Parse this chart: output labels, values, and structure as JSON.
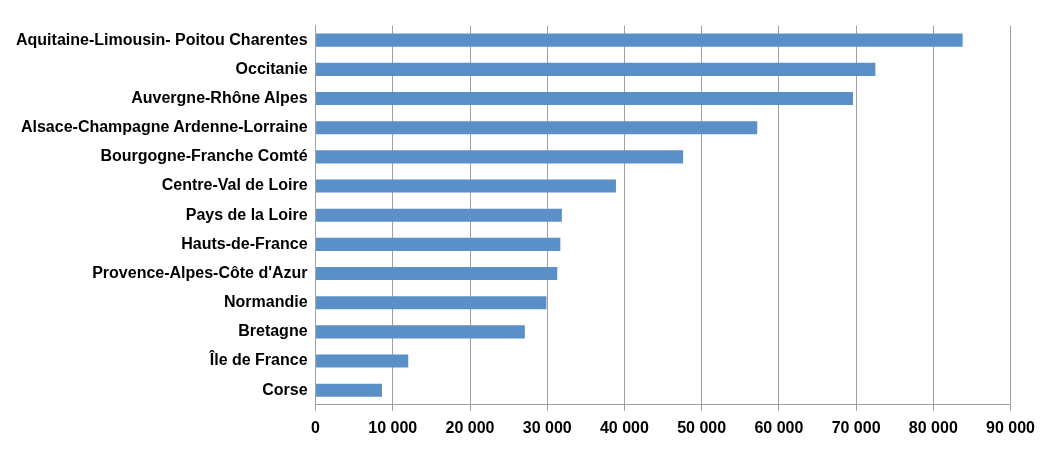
{
  "chart_data": {
    "type": "bar",
    "orientation": "horizontal",
    "categories": [
      "Aquitaine-Limousin- Poitou Charentes",
      "Occitanie",
      "Auvergne-Rhône Alpes",
      "Alsace-Champagne Ardenne-Lorraine",
      "Bourgogne-Franche Comté",
      "Centre-Val de Loire",
      "Pays de la Loire",
      "Hauts-de-France",
      "Provence-Alpes-Côte d'Azur",
      "Normandie",
      "Bretagne",
      "Île de France",
      "Corse"
    ],
    "values": [
      83800,
      72500,
      69600,
      57200,
      47600,
      38900,
      31900,
      31700,
      31300,
      29900,
      27100,
      12000,
      8600
    ],
    "color": "#5b8fc7",
    "xlim": [
      0,
      90000
    ],
    "xticks": [
      0,
      {
        "value": 10000,
        "label": "10 000"
      },
      {
        "value": 20000,
        "label": "20 000"
      },
      {
        "value": 30000,
        "label": "30 000"
      },
      {
        "value": 40000,
        "label": "40 000"
      },
      {
        "value": 50000,
        "label": "50 000"
      },
      {
        "value": 60000,
        "label": "60 000"
      },
      {
        "value": 70000,
        "label": "70 000"
      },
      {
        "value": 80000,
        "label": "80 000"
      },
      {
        "value": 90000,
        "label": "90 000"
      }
    ],
    "grid": "x"
  }
}
